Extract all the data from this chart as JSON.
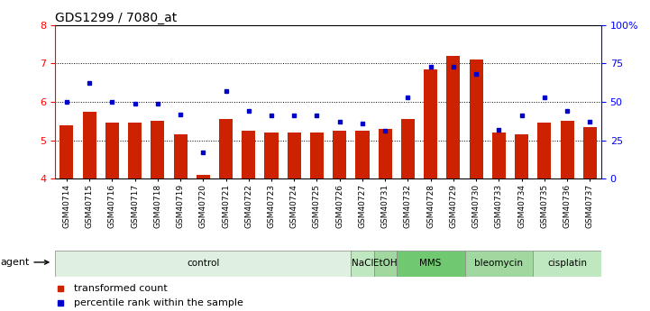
{
  "title": "GDS1299 / 7080_at",
  "samples": [
    "GSM40714",
    "GSM40715",
    "GSM40716",
    "GSM40717",
    "GSM40718",
    "GSM40719",
    "GSM40720",
    "GSM40721",
    "GSM40722",
    "GSM40723",
    "GSM40724",
    "GSM40725",
    "GSM40726",
    "GSM40727",
    "GSM40731",
    "GSM40732",
    "GSM40728",
    "GSM40729",
    "GSM40730",
    "GSM40733",
    "GSM40734",
    "GSM40735",
    "GSM40736",
    "GSM40737"
  ],
  "bar_values": [
    5.4,
    5.75,
    5.45,
    5.45,
    5.5,
    5.15,
    4.1,
    5.55,
    5.25,
    5.2,
    5.2,
    5.2,
    5.25,
    5.25,
    5.3,
    5.55,
    6.85,
    7.2,
    7.1,
    5.2,
    5.15,
    5.45,
    5.5,
    5.35
  ],
  "dot_values_pct": [
    50,
    62,
    50,
    49,
    49,
    42,
    17,
    57,
    44,
    41,
    41,
    41,
    37,
    36,
    31,
    53,
    73,
    73,
    68,
    32,
    41,
    53,
    44,
    37
  ],
  "bar_color": "#cc2200",
  "dot_color": "#0000cc",
  "ylim_left": [
    4,
    8
  ],
  "ylim_right": [
    0,
    100
  ],
  "yticks_left": [
    4,
    5,
    6,
    7,
    8
  ],
  "yticks_right": [
    0,
    25,
    50,
    75,
    100
  ],
  "ytick_labels_right": [
    "0",
    "25",
    "50",
    "75",
    "100%"
  ],
  "group_configs": [
    {
      "label": "control",
      "start": 0,
      "end": 12,
      "color": "#e0f0e0"
    },
    {
      "label": "NaCl",
      "start": 13,
      "end": 13,
      "color": "#c0e8c0"
    },
    {
      "label": "EtOH",
      "start": 14,
      "end": 14,
      "color": "#a0d8a0"
    },
    {
      "label": "MMS",
      "start": 15,
      "end": 17,
      "color": "#70c870"
    },
    {
      "label": "bleomycin",
      "start": 18,
      "end": 20,
      "color": "#a0d8a0"
    },
    {
      "label": "cisplatin",
      "start": 21,
      "end": 23,
      "color": "#c0e8c0"
    }
  ],
  "bar_width": 0.6,
  "title_fontsize": 10,
  "tick_label_fontsize": 6.5,
  "group_label_fontsize": 7.5,
  "legend_fontsize": 8
}
